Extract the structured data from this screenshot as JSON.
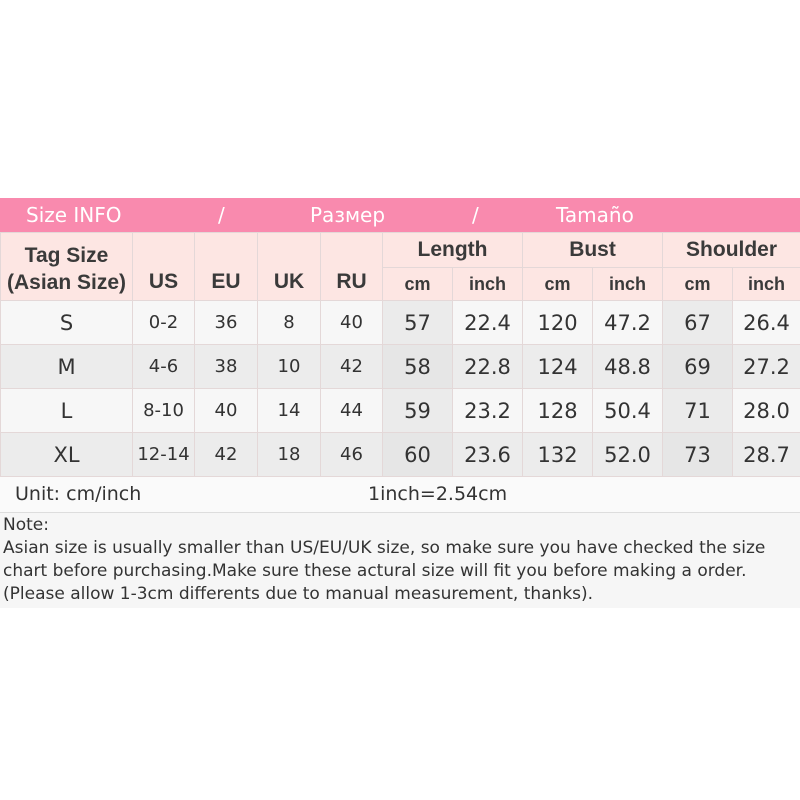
{
  "title": {
    "en": "Size INFO",
    "sep1": "/",
    "ru": "Размер",
    "sep2": "/",
    "es": "Tamaño"
  },
  "header": {
    "tag_size_line1": "Tag Size",
    "tag_size_line2": "(Asian Size)",
    "us": "US",
    "eu": "EU",
    "uk": "UK",
    "ru": "RU",
    "length": "Length",
    "bust": "Bust",
    "shoulder": "Shoulder",
    "cm": "cm",
    "inch": "inch"
  },
  "rows": [
    {
      "size": "S",
      "us": "0-2",
      "eu": "36",
      "uk": "8",
      "ru": "40",
      "length_cm": "57",
      "length_in": "22.4",
      "bust_cm": "120",
      "bust_in": "47.2",
      "shoulder_cm": "67",
      "shoulder_in": "26.4"
    },
    {
      "size": "M",
      "us": "4-6",
      "eu": "38",
      "uk": "10",
      "ru": "42",
      "length_cm": "58",
      "length_in": "22.8",
      "bust_cm": "124",
      "bust_in": "48.8",
      "shoulder_cm": "69",
      "shoulder_in": "27.2"
    },
    {
      "size": "L",
      "us": "8-10",
      "eu": "40",
      "uk": "14",
      "ru": "44",
      "length_cm": "59",
      "length_in": "23.2",
      "bust_cm": "128",
      "bust_in": "50.4",
      "shoulder_cm": "71",
      "shoulder_in": "28.0"
    },
    {
      "size": "XL",
      "us": "12-14",
      "eu": "42",
      "uk": "18",
      "ru": "46",
      "length_cm": "60",
      "length_in": "23.6",
      "bust_cm": "132",
      "bust_in": "52.0",
      "shoulder_cm": "73",
      "shoulder_in": "28.7"
    }
  ],
  "unit_note": "Unit: cm/inch",
  "conversion": "1inch=2.54cm",
  "note": {
    "label": "Note:",
    "text": "Asian size is usually smaller than US/EU/UK size, so make sure you have checked the size chart before purchasing.Make sure these actural size will fit you before making a order.(Please allow 1-3cm differents due to manual measurement, thanks)."
  },
  "colors": {
    "title_bg": "#f98aae",
    "header_bg": "#fde6e3"
  }
}
